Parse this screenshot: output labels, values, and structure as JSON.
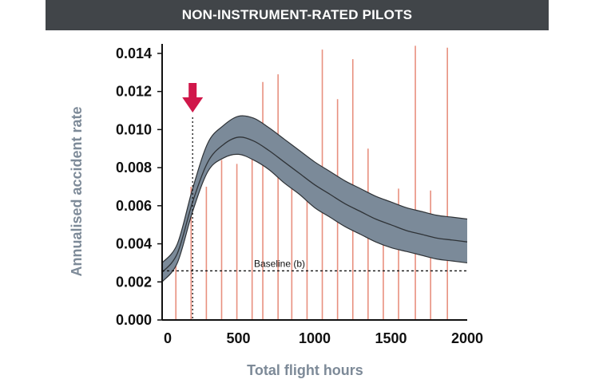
{
  "title": "NON-INSTRUMENT-RATED PILOTS",
  "colors": {
    "title_bg": "#414549",
    "band_fill": "#7b8a99",
    "band_stroke": "#2f3337",
    "spike": "#e8907f",
    "arrow": "#d0174a",
    "axis_title": "#7d8a98"
  },
  "chart_data": {
    "type": "area",
    "title": "NON-INSTRUMENT-RATED PILOTS",
    "xlabel": "Total flight hours",
    "ylabel": "Annualised accident rate",
    "xlim": [
      0,
      2000
    ],
    "ylim": [
      0,
      0.0145
    ],
    "x_ticks": [
      "0",
      "500",
      "1000",
      "1500",
      "2000"
    ],
    "y_ticks": [
      "0.000",
      "0.002",
      "0.004",
      "0.006",
      "0.008",
      "0.010",
      "0.012",
      "0.014"
    ],
    "grid": false,
    "baseline": {
      "label": "Baseline (b)",
      "value": 0.00258
    },
    "marker": {
      "x": 200,
      "description": "arrow"
    },
    "curve": {
      "x": [
        0,
        100,
        200,
        300,
        400,
        500,
        600,
        700,
        800,
        900,
        1000,
        1100,
        1200,
        1300,
        1400,
        1500,
        1600,
        1700,
        1800,
        1900,
        2000
      ],
      "mean": [
        0.0025,
        0.0035,
        0.0062,
        0.0083,
        0.0092,
        0.0096,
        0.0094,
        0.0089,
        0.0083,
        0.0077,
        0.0071,
        0.0066,
        0.0061,
        0.0057,
        0.0053,
        0.005,
        0.0047,
        0.0045,
        0.0043,
        0.0042,
        0.0041
      ],
      "lower": [
        0.002,
        0.003,
        0.0057,
        0.0078,
        0.0085,
        0.0087,
        0.0084,
        0.0079,
        0.0072,
        0.0066,
        0.0059,
        0.0054,
        0.0049,
        0.0045,
        0.0041,
        0.0038,
        0.0036,
        0.0034,
        0.0032,
        0.0031,
        0.003
      ],
      "upper": [
        0.003,
        0.004,
        0.0069,
        0.0093,
        0.0102,
        0.0107,
        0.0106,
        0.0101,
        0.0095,
        0.0089,
        0.0083,
        0.0078,
        0.0073,
        0.0069,
        0.0065,
        0.0062,
        0.0059,
        0.0057,
        0.0055,
        0.0054,
        0.0053
      ]
    },
    "events": {
      "x": [
        90,
        190,
        290,
        390,
        490,
        590,
        660,
        760,
        850,
        950,
        1050,
        1150,
        1250,
        1350,
        1450,
        1550,
        1660,
        1760,
        1870
      ],
      "height": [
        0.0036,
        0.007,
        0.007,
        0.0084,
        0.0082,
        0.0096,
        0.0125,
        0.0129,
        0.009,
        0.0085,
        0.0142,
        0.0116,
        0.0137,
        0.009,
        0.006,
        0.0069,
        0.0144,
        0.0068,
        0.0143
      ]
    }
  }
}
